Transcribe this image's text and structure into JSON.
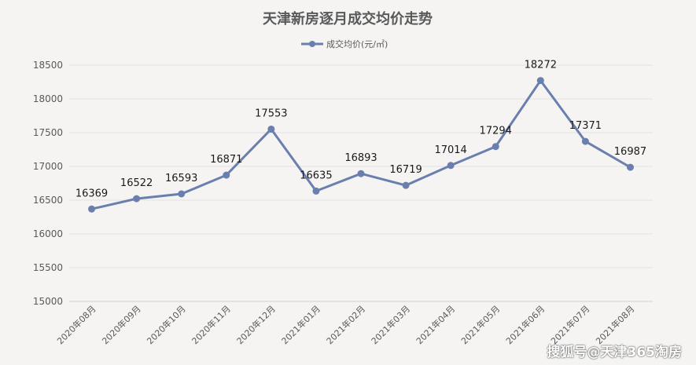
{
  "chart_data": {
    "type": "line",
    "title": "天津新房逐月成交均价走势",
    "xlabel": "",
    "ylabel": "",
    "ylim": [
      15000,
      18500
    ],
    "yticks": [
      15000,
      15500,
      16000,
      16500,
      17000,
      17500,
      18000,
      18500
    ],
    "grid": true,
    "legend": "top-center",
    "categories": [
      "2020年08月",
      "2020年09月",
      "2020年10月",
      "2020年11月",
      "2020年12月",
      "2021年01月",
      "2021年02月",
      "2021年03月",
      "2021年04月",
      "2021年05月",
      "2021年06月",
      "2021年07月",
      "2021年08月"
    ],
    "series": [
      {
        "name": "成交均价(元/㎡)",
        "color": "#6b7fae",
        "values": [
          16369,
          16522,
          16593,
          16871,
          17553,
          16635,
          16893,
          16719,
          17014,
          17294,
          18272,
          17371,
          16987
        ]
      }
    ]
  },
  "watermark": "搜狐号@天津365淘房"
}
